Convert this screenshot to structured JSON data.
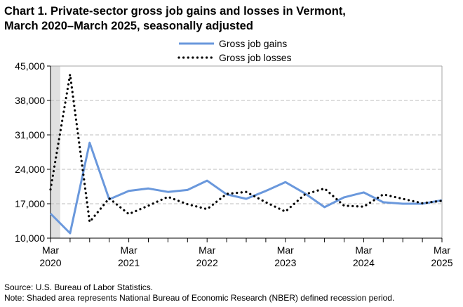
{
  "chart_data": {
    "type": "line",
    "title_line1": "Chart 1. Private-sector gross job gains and losses in Vermont,",
    "title_line2": "March 2020–March 2025, seasonally adjusted",
    "xlabel": "",
    "ylabel": "",
    "x": [
      "Mar 2020",
      "Jun 2020",
      "Sep 2020",
      "Dec 2020",
      "Mar 2021",
      "Jun 2021",
      "Sep 2021",
      "Dec 2021",
      "Mar 2022",
      "Jun 2022",
      "Sep 2022",
      "Dec 2022",
      "Mar 2023",
      "Jun 2023",
      "Sep 2023",
      "Dec 2023",
      "Mar 2024",
      "Jun 2024",
      "Sep 2024",
      "Dec 2024",
      "Mar 2025"
    ],
    "x_ticks": [
      {
        "month": "Mar",
        "year": "2020"
      },
      {
        "month": "Mar",
        "year": "2021"
      },
      {
        "month": "Mar",
        "year": "2022"
      },
      {
        "month": "Mar",
        "year": "2023"
      },
      {
        "month": "Mar",
        "year": "2024"
      },
      {
        "month": "Mar",
        "year": "2025"
      }
    ],
    "ylim": [
      10000,
      45000
    ],
    "y_ticks": [
      "10,000",
      "17,000",
      "24,000",
      "31,000",
      "38,000",
      "45,000"
    ],
    "grid": "horizontal dashed",
    "legend_position": "top",
    "recession_shading": {
      "start": "Mar 2020",
      "end": "Apr 2020",
      "color": "#e0e0e0"
    },
    "series": [
      {
        "name": "Gross job gains",
        "color": "#6a98dc",
        "style": "solid",
        "values": [
          15000,
          11000,
          29400,
          17900,
          19600,
          20100,
          19400,
          19800,
          21700,
          18900,
          18000,
          19600,
          21400,
          19100,
          16300,
          18300,
          19300,
          17300,
          17000,
          17000,
          17700
        ]
      },
      {
        "name": "Gross job losses",
        "color": "#000000",
        "style": "dotted",
        "values": [
          19900,
          43300,
          13300,
          18100,
          14900,
          16600,
          18400,
          16900,
          15900,
          19000,
          19400,
          17300,
          15400,
          18900,
          20100,
          16600,
          16400,
          18900,
          18000,
          17100,
          17600
        ]
      }
    ]
  },
  "footer": {
    "source": "Source: U.S. Bureau of Labor Statistics.",
    "note": "Note: Shaded area represents National Bureau of Economic Research (NBER) defined recession period."
  }
}
